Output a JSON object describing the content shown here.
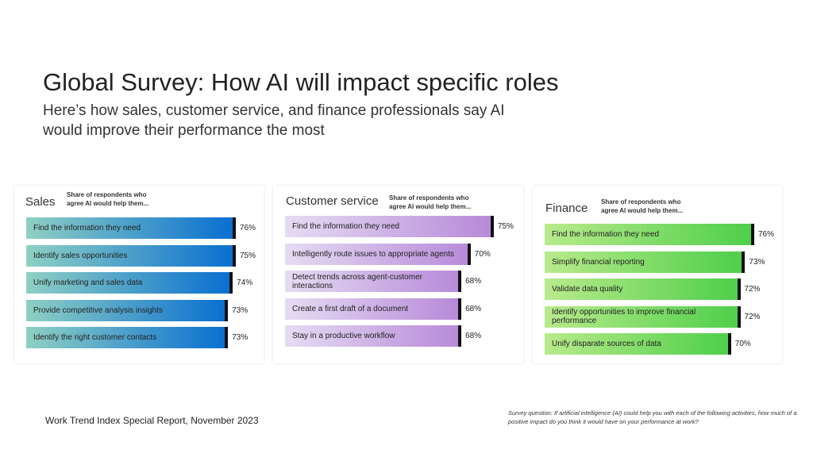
{
  "title": "Global Survey: How AI will impact specific roles",
  "subtitle": "Here’s how sales, customer service, and finance professionals say AI would improve their performance the most",
  "panels": [
    {
      "name": "Sales",
      "note": "Share of respondents who agree AI would help them...",
      "gradient": [
        "#8fd0c4",
        "#0a6fd0"
      ],
      "items": [
        {
          "label": "Find the information they need",
          "value": 76,
          "text": "76%"
        },
        {
          "label": "Identify sales opportunities",
          "value": 75,
          "text": "75%"
        },
        {
          "label": "Unify marketing and sales data",
          "value": 74,
          "text": "74%"
        },
        {
          "label": "Provide competitive analysis insights",
          "value": 73,
          "text": "73%"
        },
        {
          "label": "Identify the right customer contacts",
          "value": 73,
          "text": "73%"
        }
      ]
    },
    {
      "name": "Customer service",
      "note": "Share of respondents who agree AI would help them...",
      "gradient": [
        "#e6dcf3",
        "#b78ad9"
      ],
      "items": [
        {
          "label": "Find the information they need",
          "value": 75,
          "text": "75%"
        },
        {
          "label": "Intelligently route issues to appropriate agents",
          "value": 70,
          "text": "70%"
        },
        {
          "label": "Detect trends across agent-customer interactions",
          "value": 68,
          "text": "68%"
        },
        {
          "label": "Create a first draft of a document",
          "value": 68,
          "text": "68%"
        },
        {
          "label": "Stay in a productive workflow",
          "value": 68,
          "text": "68%"
        }
      ]
    },
    {
      "name": "Finance",
      "note": "Share of respondents who agree AI would help them...",
      "gradient": [
        "#b9ea8c",
        "#4fcf4a"
      ],
      "items": [
        {
          "label": "Find the information they need",
          "value": 76,
          "text": "76%"
        },
        {
          "label": "Simplify financial reporting",
          "value": 73,
          "text": "73%"
        },
        {
          "label": "Validate data quality",
          "value": 72,
          "text": "72%"
        },
        {
          "label": "Identify opportunities to improve financial performance",
          "value": 72,
          "text": "72%"
        },
        {
          "label": "Unify disparate sources of data",
          "value": 70,
          "text": "70%"
        }
      ]
    }
  ],
  "footer": "Work Trend Index Special Report, November 2023",
  "survey_note": "Survey question: If artificial intelligence (AI) could help you with each of the following activities, how much of a positive impact do you think it would have on your performance at work?"
}
